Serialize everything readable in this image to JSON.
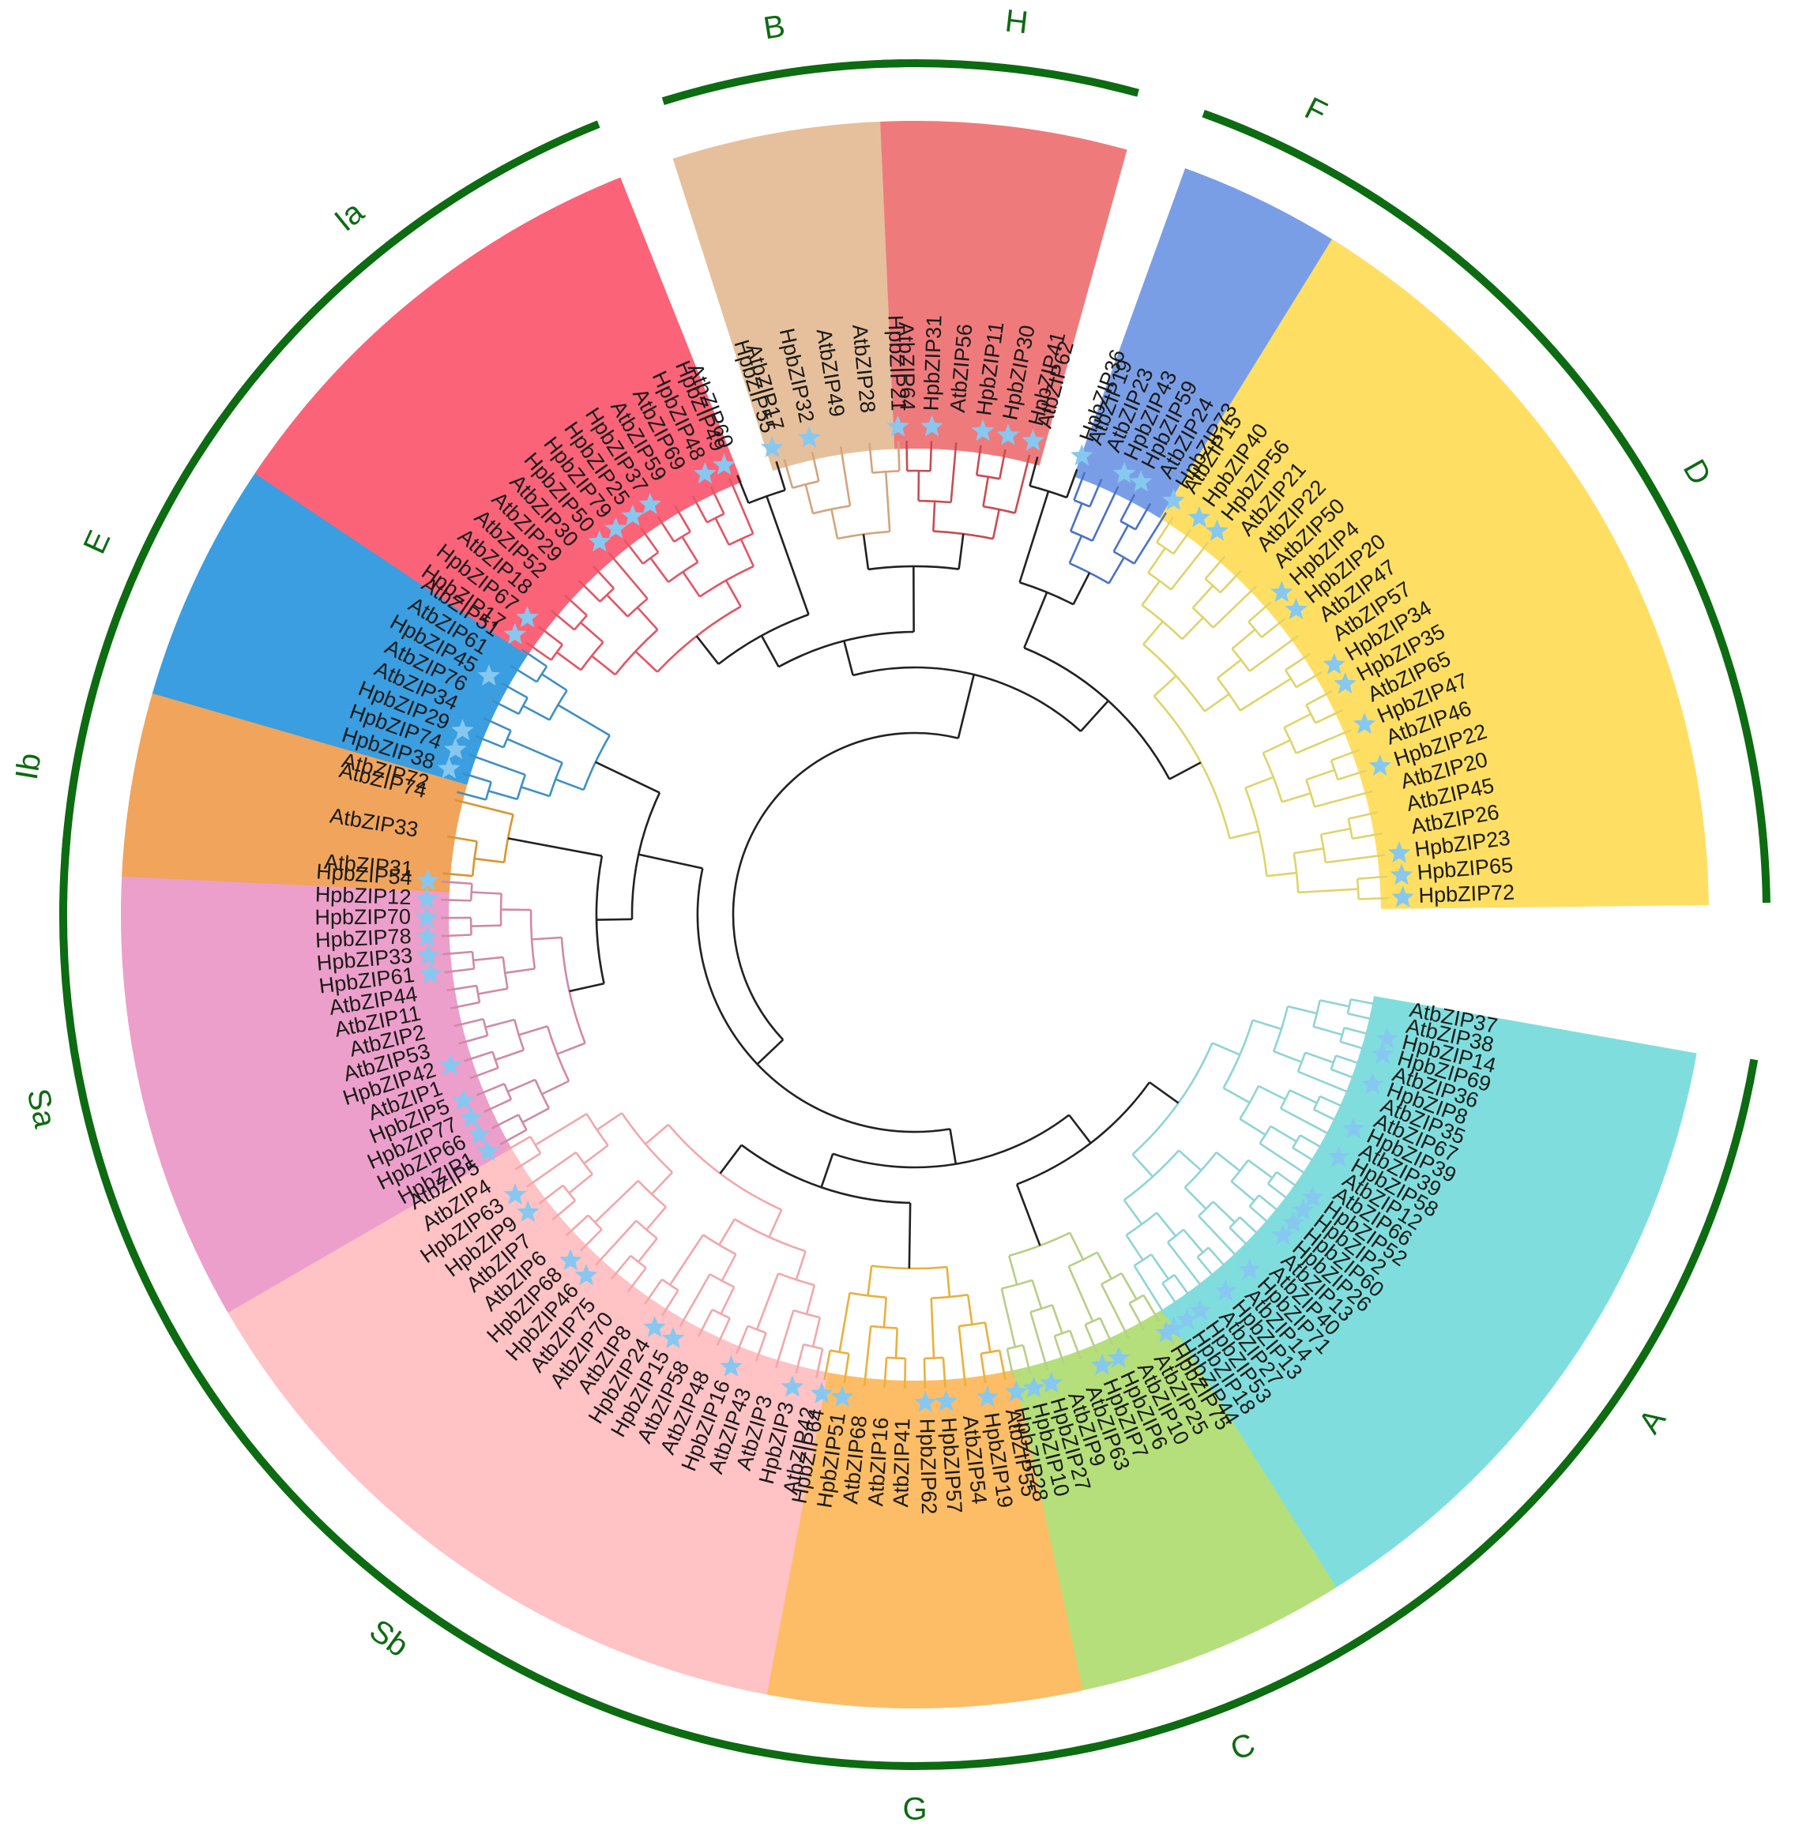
{
  "chart_data": {
    "type": "phylogenetic-tree",
    "layout": "circular",
    "marker": "star",
    "star_color": "#86c8f0",
    "clades": [
      {
        "name": "A",
        "color": "#7fdedd",
        "branch_color": "#8fd4d6",
        "start": 101,
        "end": 148,
        "leaves": [
          {
            "label": "AtbZIP37",
            "star": false
          },
          {
            "label": "AtbZIP38",
            "star": false
          },
          {
            "label": "HpbZIP14",
            "star": true
          },
          {
            "label": "HpbZIP69",
            "star": true
          },
          {
            "label": "AtbZIP36",
            "star": false
          },
          {
            "label": "HpbZIP8",
            "star": true
          },
          {
            "label": "AtbZIP35",
            "star": false
          },
          {
            "label": "AtbZIP67",
            "star": false
          },
          {
            "label": "HpbZIP39",
            "star": true
          },
          {
            "label": "AtbZIP39",
            "star": false
          },
          {
            "label": "HpbZIP58",
            "star": true
          },
          {
            "label": "AtbZIP12",
            "star": false
          },
          {
            "label": "AtbZIP66",
            "star": false
          },
          {
            "label": "HpbZIP52",
            "star": true
          },
          {
            "label": "HpbZIP2",
            "star": true
          },
          {
            "label": "HpbZIP60",
            "star": true
          },
          {
            "label": "HpbZIP26",
            "star": true
          },
          {
            "label": "AtbZIP13",
            "star": false
          },
          {
            "label": "AtbZIP40",
            "star": false
          },
          {
            "label": "HpbZIP71",
            "star": true
          },
          {
            "label": "AtbZIP14",
            "star": false
          },
          {
            "label": "HpbZIP13",
            "star": true
          },
          {
            "label": "AtbZIP27",
            "star": false
          },
          {
            "label": "HpbZIP53",
            "star": true
          },
          {
            "label": "HpbZIP18",
            "star": true
          },
          {
            "label": "HpbZIP44",
            "star": true
          }
        ]
      },
      {
        "name": "C",
        "color": "#b5df7a",
        "branch_color": "#b7cf86",
        "start": 149,
        "end": 168,
        "leaves": [
          {
            "label": "HpbZIP75",
            "star": true
          },
          {
            "label": "AtbZIP25",
            "star": false
          },
          {
            "label": "AtbZIP10",
            "star": false
          },
          {
            "label": "HpbZIP6",
            "star": true
          },
          {
            "label": "HpbZIP7",
            "star": true
          },
          {
            "label": "AtbZIP63",
            "star": false
          },
          {
            "label": "AtbZIP9",
            "star": false
          },
          {
            "label": "HpbZIP27",
            "star": true
          },
          {
            "label": "HpbZIP10",
            "star": true
          },
          {
            "label": "HpbZIP28",
            "star": true
          }
        ]
      },
      {
        "name": "G",
        "color": "#fdbd66",
        "branch_color": "#e8b13e",
        "start": 169,
        "end": 191,
        "leaves": [
          {
            "label": "AtbZIP55",
            "star": false
          },
          {
            "label": "HpbZIP19",
            "star": true
          },
          {
            "label": "AtbZIP54",
            "star": false
          },
          {
            "label": "HpbZIP57",
            "star": true
          },
          {
            "label": "HpbZIP62",
            "star": true
          },
          {
            "label": "AtbZIP41",
            "star": false
          },
          {
            "label": "AtbZIP16",
            "star": false
          },
          {
            "label": "AtbZIP68",
            "star": false
          },
          {
            "label": "HpbZIP51",
            "star": true
          },
          {
            "label": "HpbZIP64",
            "star": true
          }
        ]
      },
      {
        "name": "Sb",
        "color": "#ffc2c5",
        "branch_color": "#f2a7ab",
        "start": 192,
        "end": 240,
        "leaves": [
          {
            "label": "AtbZIP42",
            "star": false
          },
          {
            "label": "HpbZIP3",
            "star": true
          },
          {
            "label": "AtbZIP3",
            "star": false
          },
          {
            "label": "AtbZIP43",
            "star": false
          },
          {
            "label": "HpbZIP16",
            "star": true
          },
          {
            "label": "AtbZIP48",
            "star": false
          },
          {
            "label": "AtbZIP58",
            "star": false
          },
          {
            "label": "HpbZIP15",
            "star": true
          },
          {
            "label": "HpbZIP24",
            "star": true
          },
          {
            "label": "AtbZIP8",
            "star": false
          },
          {
            "label": "AtbZIP70",
            "star": false
          },
          {
            "label": "AtbZIP75",
            "star": false
          },
          {
            "label": "HpbZIP46",
            "star": true
          },
          {
            "label": "HpbZIP68",
            "star": true
          },
          {
            "label": "AtbZIP6",
            "star": false
          },
          {
            "label": "AtbZIP7",
            "star": false
          },
          {
            "label": "HpbZIP9",
            "star": true
          },
          {
            "label": "HpbZIP63",
            "star": true
          },
          {
            "label": "AtbZIP4",
            "star": false
          },
          {
            "label": "AtbZIP5",
            "star": false
          }
        ]
      },
      {
        "name": "Sa",
        "color": "#ec9fca",
        "branch_color": "#cf8aa7",
        "start": 241,
        "end": 274,
        "leaves": [
          {
            "label": "HpbZIP1",
            "star": true
          },
          {
            "label": "HpbZIP66",
            "star": true
          },
          {
            "label": "HpbZIP77",
            "star": true
          },
          {
            "label": "HpbZIP5",
            "star": true
          },
          {
            "label": "AtbZIP1",
            "star": false
          },
          {
            "label": "HpbZIP42",
            "star": true
          },
          {
            "label": "AtbZIP53",
            "star": false
          },
          {
            "label": "AtbZIP2",
            "star": false
          },
          {
            "label": "AtbZIP11",
            "star": false
          },
          {
            "label": "AtbZIP44",
            "star": false
          },
          {
            "label": "HpbZIP61",
            "star": true
          },
          {
            "label": "HpbZIP33",
            "star": true
          },
          {
            "label": "HpbZIP78",
            "star": true
          },
          {
            "label": "HpbZIP70",
            "star": true
          },
          {
            "label": "HpbZIP12",
            "star": true
          },
          {
            "label": "HpbZIP54",
            "star": true
          }
        ]
      },
      {
        "name": "Ib",
        "color": "#f0a45c",
        "branch_color": "#d9952e",
        "start": 275,
        "end": 284,
        "leaves": [
          {
            "label": "AtbZIP31",
            "star": false
          },
          {
            "label": "AtbZIP33",
            "star": false
          },
          {
            "label": "AtbZIP74",
            "star": false
          }
        ]
      },
      {
        "name": "E",
        "color": "#3a9ee0",
        "branch_color": "#3f8fc4",
        "start": 285,
        "end": 304,
        "leaves": [
          {
            "label": "AtbZIP72",
            "star": false,
            "unshaded": true
          },
          {
            "label": "HpbZIP38",
            "star": true
          },
          {
            "label": "HpbZIP74",
            "star": true
          },
          {
            "label": "HpbZIP29",
            "star": true
          },
          {
            "label": "AtbZIP34",
            "star": false
          },
          {
            "label": "AtbZIP76",
            "star": false
          },
          {
            "label": "HpbZIP45",
            "star": true
          },
          {
            "label": "AtbZIP61",
            "star": false
          },
          {
            "label": "AtbZIP51",
            "star": false
          }
        ]
      },
      {
        "name": "Ia",
        "color": "#fb6378",
        "branch_color": "#e05666",
        "start": 305,
        "end": 337,
        "leaves": [
          {
            "label": "HpbZIP17",
            "star": true
          },
          {
            "label": "HpbZIP67",
            "star": true
          },
          {
            "label": "AtbZIP18",
            "star": false
          },
          {
            "label": "AtbZIP52",
            "star": false
          },
          {
            "label": "AtbZIP29",
            "star": false
          },
          {
            "label": "AtbZIP30",
            "star": false
          },
          {
            "label": "HpbZIP50",
            "star": true
          },
          {
            "label": "HpbZIP79",
            "star": true
          },
          {
            "label": "HpbZIP25",
            "star": true
          },
          {
            "label": "HpbZIP37",
            "star": true
          },
          {
            "label": "AtbZIP59",
            "star": false
          },
          {
            "label": "AtbZIP69",
            "star": false
          },
          {
            "label": "HpbZIP48",
            "star": true
          },
          {
            "label": "HpbZIP49",
            "star": true
          }
        ]
      },
      {
        "name": "",
        "color": "",
        "branch_color": "#222222",
        "start": 338,
        "end": 343,
        "leaves": [
          {
            "label": "AtbZIP60",
            "star": false
          },
          {
            "label": "HpbZIP55",
            "star": true
          }
        ]
      },
      {
        "name": "B",
        "color": "#e6c09c",
        "branch_color": "#d2a57c",
        "start": 344,
        "end": 358,
        "leaves": [
          {
            "label": "AtbZIP17",
            "star": false
          },
          {
            "label": "HpbZIP32",
            "star": true
          },
          {
            "label": "AtbZIP49",
            "star": false
          },
          {
            "label": "AtbZIP28",
            "star": false
          },
          {
            "label": "HpbZIP21",
            "star": true
          }
        ]
      },
      {
        "name": "H",
        "color": "#ef7a7c",
        "branch_color": "#c94c52",
        "start": 359,
        "end": 374,
        "leaves": [
          {
            "label": "AtbZIP64",
            "star": false
          },
          {
            "label": "HpbZIP31",
            "star": true
          },
          {
            "label": "AtbZIP56",
            "star": false
          },
          {
            "label": "HpbZIP11",
            "star": true
          },
          {
            "label": "HpbZIP30",
            "star": true
          },
          {
            "label": "HpbZIP41",
            "star": true
          }
        ]
      },
      {
        "name": "",
        "color": "",
        "branch_color": "#222222",
        "start": 375,
        "end": 380,
        "leaves": [
          {
            "label": "AtbZIP62",
            "star": false
          },
          {
            "label": "HpbZIP36",
            "star": true
          }
        ]
      },
      {
        "name": "F",
        "color": "#7a9ee6",
        "branch_color": "#4a72c8",
        "start": 381,
        "end": 392,
        "leaves": [
          {
            "label": "AtbZIP19",
            "star": false
          },
          {
            "label": "AtbZIP23",
            "star": false
          },
          {
            "label": "HpbZIP43",
            "star": true
          },
          {
            "label": "HpbZIP59",
            "star": true
          },
          {
            "label": "AtbZIP24",
            "star": false
          },
          {
            "label": "HpbZIP73",
            "star": true
          }
        ]
      },
      {
        "name": "D",
        "color": "#ffdf63",
        "branch_color": "#e0d36a",
        "start": 393,
        "end": 448,
        "leaves": [
          {
            "label": "AtbZIP15",
            "star": false
          },
          {
            "label": "HpbZIP40",
            "star": true
          },
          {
            "label": "HpbZIP56",
            "star": true
          },
          {
            "label": "AtbZIP21",
            "star": false
          },
          {
            "label": "AtbZIP22",
            "star": false
          },
          {
            "label": "AtbZIP50",
            "star": false
          },
          {
            "label": "HpbZIP4",
            "star": true
          },
          {
            "label": "HpbZIP20",
            "star": true
          },
          {
            "label": "AtbZIP47",
            "star": false
          },
          {
            "label": "AtbZIP57",
            "star": false
          },
          {
            "label": "HpbZIP34",
            "star": true
          },
          {
            "label": "HpbZIP35",
            "star": true
          },
          {
            "label": "AtbZIP65",
            "star": false
          },
          {
            "label": "HpbZIP47",
            "star": true
          },
          {
            "label": "AtbZIP46",
            "star": false
          },
          {
            "label": "HpbZIP22",
            "star": true
          },
          {
            "label": "AtbZIP20",
            "star": false
          },
          {
            "label": "AtbZIP45",
            "star": false
          },
          {
            "label": "AtbZIP26",
            "star": false
          },
          {
            "label": "HpbZIP23",
            "star": true
          },
          {
            "label": "HpbZIP65",
            "star": true
          },
          {
            "label": "HpbZIP72",
            "star": true
          }
        ]
      }
    ]
  }
}
